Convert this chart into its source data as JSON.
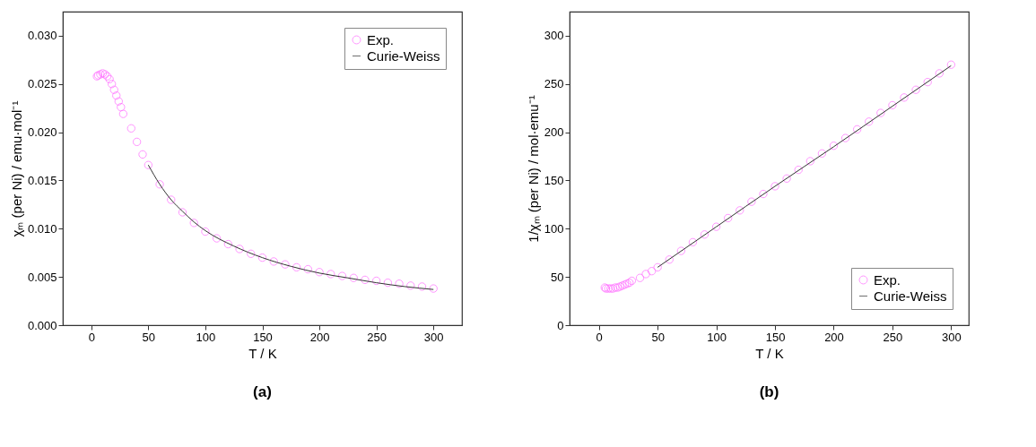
{
  "chart_data": [
    {
      "type": "scatter",
      "title": "(a)",
      "xlabel": "T / K",
      "ylabel": "χₘ (per Ni) / emu·mol⁻¹",
      "xlim": [
        -25,
        325
      ],
      "ylim": [
        0,
        0.0325
      ],
      "xticks": [
        0,
        50,
        100,
        150,
        200,
        250,
        300
      ],
      "yticks": [
        {
          "value": 0,
          "label": "0.000"
        },
        {
          "value": 0.005,
          "label": "0.005"
        },
        {
          "value": 0.01,
          "label": "0.010"
        },
        {
          "value": 0.015,
          "label": "0.015"
        },
        {
          "value": 0.02,
          "label": "0.020"
        },
        {
          "value": 0.025,
          "label": "0.025"
        },
        {
          "value": 0.03,
          "label": "0.030"
        }
      ],
      "grid": false,
      "legend": "top right",
      "series": [
        {
          "name": "Exp.",
          "marker": "circle",
          "color": "#ff66ff",
          "x": [
            5,
            6,
            8,
            10,
            12,
            14,
            16,
            18,
            20,
            22,
            24,
            26,
            28,
            35,
            40,
            45,
            50,
            60,
            70,
            80,
            90,
            100,
            110,
            120,
            130,
            140,
            150,
            160,
            170,
            180,
            190,
            200,
            210,
            220,
            230,
            240,
            250,
            260,
            270,
            280,
            290,
            300
          ],
          "values": [
            0.0258,
            0.0259,
            0.026,
            0.0261,
            0.026,
            0.0258,
            0.0255,
            0.025,
            0.0244,
            0.0238,
            0.0232,
            0.0226,
            0.0219,
            0.0204,
            0.019,
            0.0177,
            0.0166,
            0.0146,
            0.013,
            0.0117,
            0.0106,
            0.0097,
            0.009,
            0.0084,
            0.0079,
            0.0074,
            0.007,
            0.0066,
            0.0063,
            0.006,
            0.0058,
            0.0055,
            0.0053,
            0.0051,
            0.0049,
            0.0047,
            0.0046,
            0.0044,
            0.0043,
            0.0041,
            0.004,
            0.0038
          ]
        },
        {
          "name": "Curie-Weiss",
          "type": "line",
          "color": "#333333",
          "x": [
            50,
            60,
            70,
            80,
            90,
            100,
            125,
            150,
            175,
            200,
            225,
            250,
            275,
            300
          ],
          "values": [
            0.0166,
            0.0146,
            0.013,
            0.0118,
            0.0107,
            0.0098,
            0.0082,
            0.007,
            0.0061,
            0.0054,
            0.0049,
            0.0044,
            0.004,
            0.0037
          ]
        }
      ]
    },
    {
      "type": "scatter",
      "title": "(b)",
      "xlabel": "T / K",
      "ylabel": "1/χₘ (per Ni) / mol·emu⁻¹",
      "xlim": [
        -25,
        315
      ],
      "ylim": [
        0,
        325
      ],
      "xticks": [
        0,
        50,
        100,
        150,
        200,
        250,
        300
      ],
      "yticks": [
        0,
        50,
        100,
        150,
        200,
        250,
        300
      ],
      "grid": false,
      "legend": "bottom right",
      "series": [
        {
          "name": "Exp.",
          "marker": "circle",
          "color": "#ff66ff",
          "x": [
            5,
            6,
            8,
            10,
            12,
            14,
            16,
            18,
            20,
            22,
            24,
            26,
            28,
            35,
            40,
            45,
            50,
            60,
            70,
            80,
            90,
            100,
            110,
            120,
            130,
            140,
            150,
            160,
            170,
            180,
            190,
            200,
            210,
            220,
            230,
            240,
            250,
            260,
            270,
            280,
            290,
            300
          ],
          "values": [
            39,
            38,
            38,
            38,
            38,
            39,
            39,
            40,
            41,
            42,
            43,
            44,
            46,
            49,
            53,
            56,
            60,
            68,
            77,
            86,
            94,
            102,
            111,
            119,
            128,
            136,
            144,
            152,
            161,
            170,
            178,
            186,
            194,
            203,
            211,
            220,
            228,
            236,
            244,
            252,
            261,
            270
          ]
        },
        {
          "name": "Curie-Weiss",
          "type": "line",
          "color": "#333333",
          "x": [
            50,
            100,
            150,
            200,
            250,
            300
          ],
          "values": [
            60,
            102,
            144,
            185,
            227,
            269
          ]
        }
      ]
    }
  ]
}
